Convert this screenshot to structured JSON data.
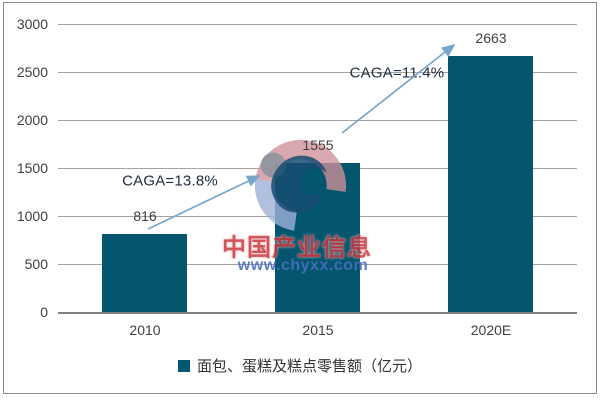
{
  "chart_data": {
    "type": "bar",
    "title": "",
    "categories": [
      "2010",
      "2015",
      "2020E"
    ],
    "values": [
      816,
      1555,
      2663
    ],
    "series_name": "面包、蛋糕及糕点零售额（亿元）",
    "ylabel": "",
    "xlabel": "",
    "ylim": [
      0,
      3000
    ],
    "yticks": [
      0,
      500,
      1000,
      1500,
      2000,
      2500,
      3000
    ],
    "grid": true,
    "legend_position": "bottom",
    "bar_color": "#03566e",
    "annotations": [
      {
        "label": "CAGA=13.8%",
        "between": [
          "2010",
          "2015"
        ]
      },
      {
        "label": "CAGA=11.4%",
        "between": [
          "2015",
          "2020E"
        ]
      }
    ]
  },
  "legend": {
    "label": "面包、蛋糕及糕点零售额（亿元）"
  },
  "annotations": {
    "cagr1": "CAGA=13.8%",
    "cagr2": "CAGA=11.4%"
  },
  "watermark": {
    "brand": "中国产业信息",
    "url": "www.chyxx.com"
  },
  "colors": {
    "bar": "#03566e",
    "arrow": "#78a6cb",
    "gridline": "#a3a3a3",
    "axis_line": "#7f7f7f",
    "tick_text": "#3f3f3f",
    "annotation_text": "#1e2b3c",
    "watermark_red": "#c8393f",
    "watermark_blue": "#4a6fbf"
  }
}
